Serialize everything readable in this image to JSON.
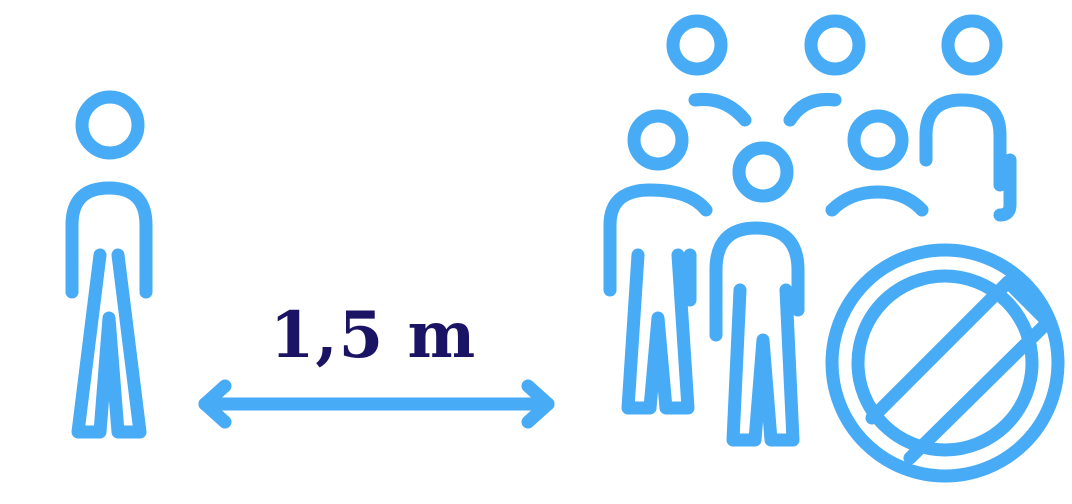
{
  "distance_text": "1,5 m",
  "colors": {
    "icon": "#47ABF6",
    "text": "#1B1464",
    "background": "#FFFFFF"
  },
  "icons": {
    "single_person": "person-icon",
    "distance_arrow": "double-arrow-icon",
    "crowd": "crowd-icon",
    "prohibited": "no-entry-icon"
  }
}
